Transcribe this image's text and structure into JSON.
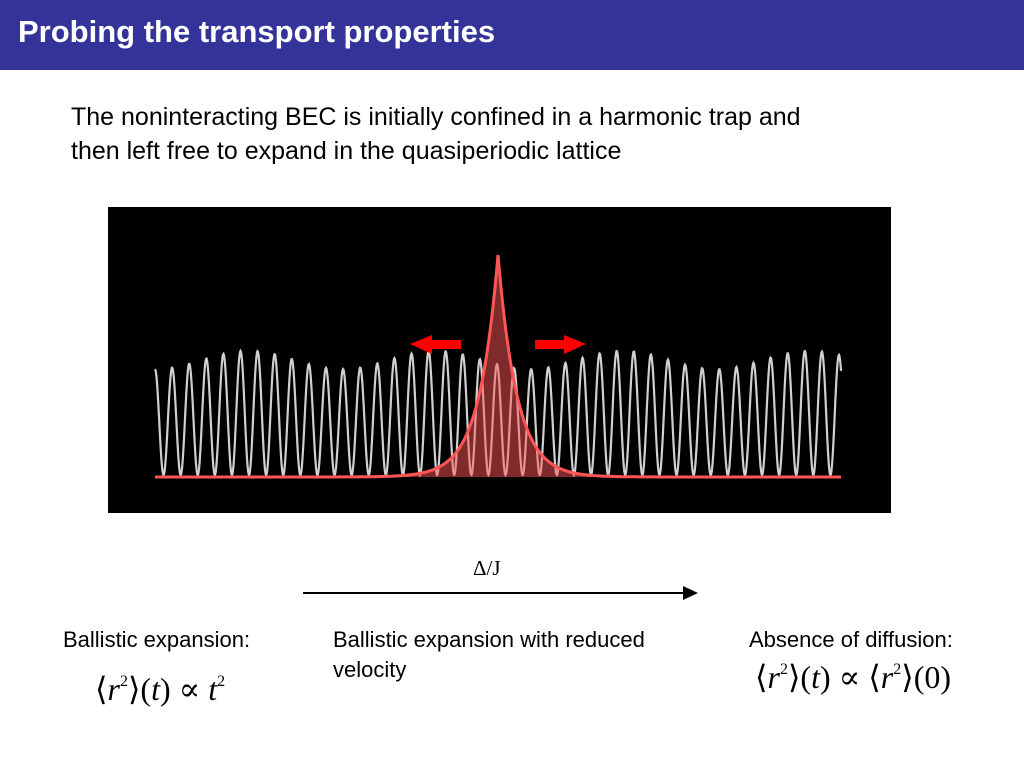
{
  "header": {
    "title": "Probing the transport properties",
    "bar_color": "#333399"
  },
  "intro": {
    "line1": "The noninteracting BEC is initially confined in a harmonic trap and",
    "line2": "then left free to expand in the quasiperiodic lattice"
  },
  "figure": {
    "background": "#000000",
    "lattice_color": "#d0d0d0",
    "condensate_color": "#ff5555",
    "arrow_color": "#ff0000",
    "arrow_icons": [
      "arrow-left-icon",
      "arrow-right-icon"
    ]
  },
  "axis": {
    "label": "Δ/J"
  },
  "regimes": {
    "left_caption": "Ballistic expansion:",
    "middle_caption": "Ballistic expansion with reduced velocity",
    "right_caption": "Absence of diffusion:"
  },
  "formulas": {
    "left": {
      "open": "⟨",
      "var": "r",
      "exp": "2",
      "close": "⟩",
      "arg_open": "(",
      "arg": "t",
      "arg_close": ")",
      "rel": "∝",
      "rhs_var": "t",
      "rhs_exp": "2"
    },
    "right": {
      "open": "⟨",
      "var": "r",
      "exp": "2",
      "close": "⟩",
      "arg_open": "(",
      "arg": "t",
      "arg_close": ")",
      "rel": "∝",
      "rhs_open": "⟨",
      "rhs_var": "r",
      "rhs_exp": "2",
      "rhs_close": "⟩",
      "rhs_arg_open": "(",
      "rhs_arg": "0",
      "rhs_arg_close": ")"
    }
  }
}
